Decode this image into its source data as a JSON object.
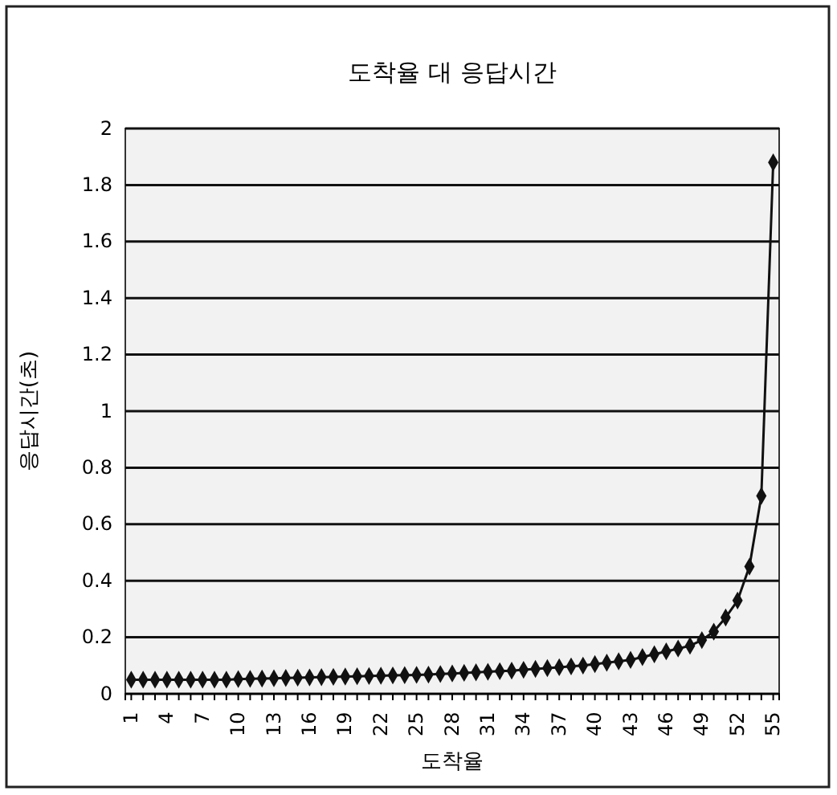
{
  "chart_data": {
    "type": "line",
    "title": "도착율 대 응답시간",
    "xlabel": "도착율",
    "ylabel": "응답시간(초)",
    "categories": [
      "1",
      null,
      null,
      "4",
      null,
      null,
      "7",
      null,
      null,
      "10",
      null,
      null,
      "13",
      null,
      null,
      "16",
      null,
      null,
      "19",
      null,
      null,
      "22",
      null,
      null,
      "25",
      null,
      null,
      "28",
      null,
      null,
      "31",
      null,
      null,
      "34",
      null,
      null,
      "37",
      null,
      null,
      "40",
      null,
      null,
      "43",
      null,
      null,
      "46",
      null,
      null,
      "49",
      null,
      null,
      "52",
      null,
      null,
      "55"
    ],
    "series": [
      {
        "color": "#111111",
        "values": [
          0.05,
          0.05,
          0.05,
          0.05,
          0.05,
          0.05,
          0.05,
          0.05,
          0.05,
          0.052,
          0.053,
          0.054,
          0.055,
          0.056,
          0.057,
          0.058,
          0.059,
          0.06,
          0.061,
          0.062,
          0.063,
          0.064,
          0.065,
          0.066,
          0.067,
          0.068,
          0.07,
          0.072,
          0.074,
          0.076,
          0.078,
          0.08,
          0.082,
          0.085,
          0.088,
          0.091,
          0.094,
          0.097,
          0.1,
          0.105,
          0.11,
          0.115,
          0.12,
          0.13,
          0.14,
          0.15,
          0.16,
          0.17,
          0.19,
          0.22,
          0.27,
          0.33,
          0.45,
          0.7,
          1.88
        ]
      }
    ],
    "ylim": [
      0,
      2
    ],
    "yticks": [
      0,
      0.2,
      0.4,
      0.6,
      0.8,
      1,
      1.2,
      1.4,
      1.6,
      1.8,
      2
    ],
    "grid": "y",
    "marker": "diamond",
    "line_style": "solid"
  }
}
